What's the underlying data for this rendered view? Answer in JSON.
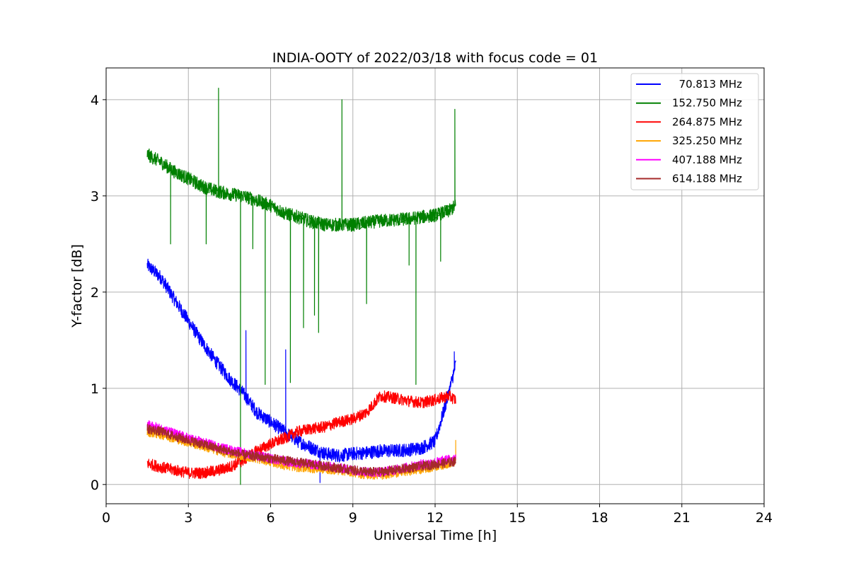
{
  "chart_data": {
    "type": "line",
    "title": "INDIA-OOTY of 2022/03/18 with focus code = 01",
    "xlabel": "Universal Time [h]",
    "ylabel": "Y-factor [dB]",
    "xlim": [
      0,
      24
    ],
    "ylim": [
      -0.2,
      4.33
    ],
    "xticks": [
      0,
      3,
      6,
      9,
      12,
      15,
      18,
      21,
      24
    ],
    "yticks": [
      0,
      1,
      2,
      3,
      4
    ],
    "grid": true,
    "legend_position": "top-right",
    "series": [
      {
        "name": "  70.813 MHz",
        "color": "#0000ff",
        "noise": 0.07,
        "x": [
          1.5,
          2.0,
          2.5,
          3.0,
          3.5,
          4.0,
          4.5,
          5.0,
          5.5,
          6.0,
          6.5,
          7.0,
          7.5,
          8.0,
          8.5,
          9.0,
          9.5,
          10.0,
          10.5,
          11.0,
          11.5,
          12.0,
          12.3,
          12.5,
          12.75
        ],
        "y": [
          2.28,
          2.15,
          1.92,
          1.7,
          1.48,
          1.28,
          1.1,
          0.95,
          0.75,
          0.65,
          0.55,
          0.45,
          0.38,
          0.32,
          0.3,
          0.32,
          0.33,
          0.35,
          0.35,
          0.36,
          0.38,
          0.45,
          0.75,
          0.95,
          1.25
        ],
        "spikes": [
          {
            "x": 5.1,
            "y": 1.6
          },
          {
            "x": 6.55,
            "y": 1.4
          },
          {
            "x": 7.8,
            "y": 0.02
          },
          {
            "x": 12.7,
            "y": 1.38
          }
        ]
      },
      {
        "name": "152.750 MHz",
        "color": "#008000",
        "noise": 0.07,
        "x": [
          1.5,
          2.0,
          2.5,
          3.0,
          3.5,
          4.0,
          4.5,
          5.0,
          5.5,
          6.0,
          6.5,
          7.0,
          7.5,
          8.0,
          8.5,
          9.0,
          9.5,
          10.0,
          10.5,
          11.0,
          11.5,
          12.0,
          12.5,
          12.75
        ],
        "y": [
          3.43,
          3.35,
          3.25,
          3.18,
          3.1,
          3.05,
          3.02,
          3.0,
          2.95,
          2.9,
          2.82,
          2.78,
          2.73,
          2.7,
          2.7,
          2.7,
          2.72,
          2.74,
          2.75,
          2.76,
          2.78,
          2.8,
          2.84,
          2.9
        ],
        "spikes": [
          {
            "x": 2.35,
            "y": 2.5
          },
          {
            "x": 3.65,
            "y": 2.5
          },
          {
            "x": 4.1,
            "y": 4.12
          },
          {
            "x": 4.9,
            "y": 0.0
          },
          {
            "x": 5.35,
            "y": 2.45
          },
          {
            "x": 5.8,
            "y": 1.04
          },
          {
            "x": 6.72,
            "y": 1.06
          },
          {
            "x": 7.2,
            "y": 1.63
          },
          {
            "x": 7.6,
            "y": 1.76
          },
          {
            "x": 7.75,
            "y": 1.58
          },
          {
            "x": 8.6,
            "y": 4.0
          },
          {
            "x": 9.5,
            "y": 1.88
          },
          {
            "x": 11.05,
            "y": 2.28
          },
          {
            "x": 11.3,
            "y": 1.04
          },
          {
            "x": 12.2,
            "y": 2.32
          },
          {
            "x": 12.72,
            "y": 3.9
          }
        ]
      },
      {
        "name": "264.875 MHz",
        "color": "#ff0000",
        "noise": 0.06,
        "x": [
          1.5,
          2.0,
          2.5,
          3.0,
          3.5,
          4.0,
          4.5,
          5.0,
          5.5,
          6.0,
          6.5,
          7.0,
          7.5,
          8.0,
          8.5,
          9.0,
          9.5,
          10.0,
          10.5,
          11.0,
          11.5,
          12.0,
          12.5,
          12.75
        ],
        "y": [
          0.22,
          0.18,
          0.15,
          0.12,
          0.12,
          0.14,
          0.18,
          0.25,
          0.35,
          0.42,
          0.48,
          0.55,
          0.58,
          0.6,
          0.65,
          0.68,
          0.75,
          0.92,
          0.9,
          0.87,
          0.85,
          0.88,
          0.92,
          0.88
        ],
        "spikes": []
      },
      {
        "name": "325.250 MHz",
        "color": "#ffa500",
        "noise": 0.05,
        "x": [
          1.5,
          2.0,
          2.5,
          3.0,
          3.5,
          4.0,
          4.5,
          5.0,
          5.5,
          6.0,
          6.5,
          7.0,
          7.5,
          8.0,
          8.5,
          9.0,
          9.5,
          10.0,
          10.5,
          11.0,
          11.5,
          12.0,
          12.5,
          12.75
        ],
        "y": [
          0.55,
          0.52,
          0.48,
          0.44,
          0.4,
          0.36,
          0.32,
          0.3,
          0.27,
          0.24,
          0.2,
          0.18,
          0.17,
          0.16,
          0.15,
          0.13,
          0.1,
          0.1,
          0.12,
          0.14,
          0.16,
          0.19,
          0.22,
          0.25
        ],
        "spikes": [
          {
            "x": 12.75,
            "y": 0.46
          }
        ]
      },
      {
        "name": "407.188 MHz",
        "color": "#ff00ff",
        "noise": 0.05,
        "x": [
          1.5,
          2.0,
          2.5,
          3.0,
          3.5,
          4.0,
          4.5,
          5.0,
          5.5,
          6.0,
          6.5,
          7.0,
          7.5,
          8.0,
          8.5,
          9.0,
          9.5,
          10.0,
          10.5,
          11.0,
          11.5,
          12.0,
          12.5,
          12.75
        ],
        "y": [
          0.62,
          0.58,
          0.53,
          0.48,
          0.44,
          0.4,
          0.36,
          0.33,
          0.3,
          0.27,
          0.24,
          0.22,
          0.21,
          0.19,
          0.17,
          0.15,
          0.13,
          0.13,
          0.15,
          0.18,
          0.21,
          0.23,
          0.26,
          0.28
        ],
        "spikes": []
      },
      {
        "name": "614.188 MHz",
        "color": "#a52a2a",
        "noise": 0.05,
        "x": [
          1.5,
          2.0,
          2.5,
          3.0,
          3.5,
          4.0,
          4.5,
          5.0,
          5.5,
          6.0,
          6.5,
          7.0,
          7.5,
          8.0,
          8.5,
          9.0,
          9.5,
          10.0,
          10.5,
          11.0,
          11.5,
          12.0,
          12.5,
          12.75
        ],
        "y": [
          0.58,
          0.55,
          0.5,
          0.46,
          0.42,
          0.38,
          0.34,
          0.31,
          0.29,
          0.27,
          0.25,
          0.23,
          0.21,
          0.19,
          0.17,
          0.15,
          0.13,
          0.13,
          0.15,
          0.17,
          0.19,
          0.21,
          0.23,
          0.24
        ],
        "spikes": []
      }
    ]
  }
}
